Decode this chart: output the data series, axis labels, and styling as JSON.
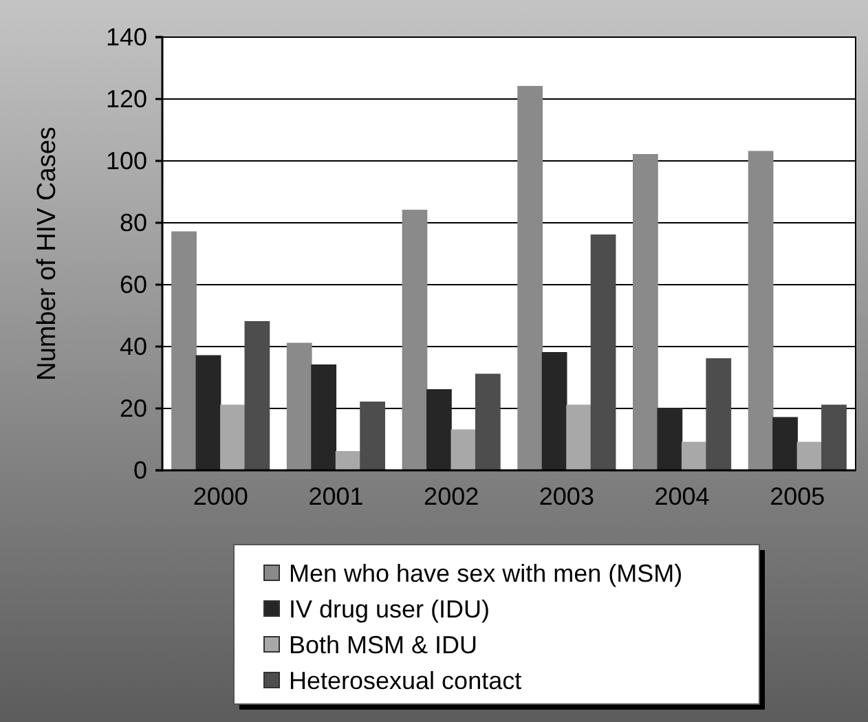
{
  "chart_data": {
    "type": "bar",
    "ylabel": "Number of HIV Cases",
    "categories": [
      "2000",
      "2001",
      "2002",
      "2003",
      "2004",
      "2005"
    ],
    "series": [
      {
        "name": "Men who have sex with men (MSM)",
        "color": "#8a8a8a",
        "values": [
          77,
          41,
          84,
          124,
          102,
          103
        ]
      },
      {
        "name": "IV drug user (IDU)",
        "color": "#262626",
        "values": [
          37,
          34,
          26,
          38,
          20,
          17
        ]
      },
      {
        "name": "Both MSM & IDU",
        "color": "#a8a8a8",
        "values": [
          21,
          6,
          13,
          21,
          9,
          9
        ]
      },
      {
        "name": "Heterosexual contact",
        "color": "#4d4d4d",
        "values": [
          48,
          22,
          31,
          76,
          36,
          21
        ]
      }
    ],
    "ylim": [
      0,
      140
    ],
    "yticks": [
      0,
      20,
      40,
      60,
      80,
      100,
      120,
      140
    ],
    "grid": "y",
    "legend": "bottom"
  }
}
